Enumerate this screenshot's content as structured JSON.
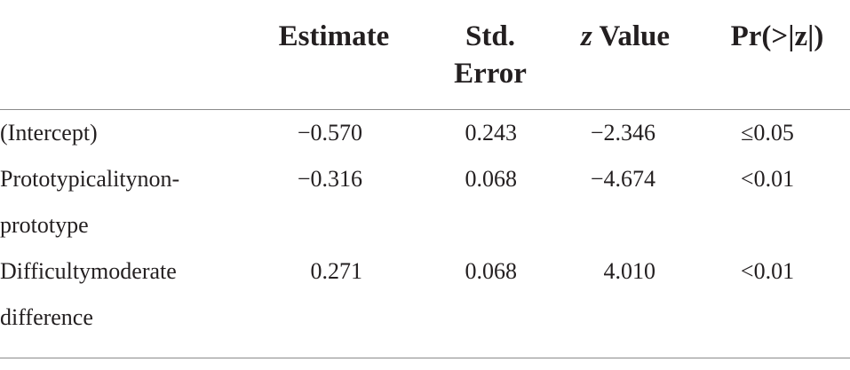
{
  "table": {
    "headers": {
      "estimate": "Estimate",
      "std_error_line1": "Std.",
      "std_error_line2": "Error",
      "z_italic": "z",
      "z_rest": " Value",
      "pr": "Pr(>|z|)"
    },
    "rows": [
      {
        "term_line1": "(Intercept)",
        "term_line2": "",
        "estimate": "−0.570",
        "std_error": "0.243",
        "z_value": "−2.346",
        "p": "≤0.05"
      },
      {
        "term_line1": "Prototypicalitynon-",
        "term_line2": "prototype",
        "estimate": "−0.316",
        "std_error": "0.068",
        "z_value": "−4.674",
        "p": "<0.01"
      },
      {
        "term_line1": "Difficultymoderate",
        "term_line2": "difference",
        "estimate": "0.271",
        "std_error": "0.068",
        "z_value": "4.010",
        "p": "<0.01"
      }
    ]
  }
}
